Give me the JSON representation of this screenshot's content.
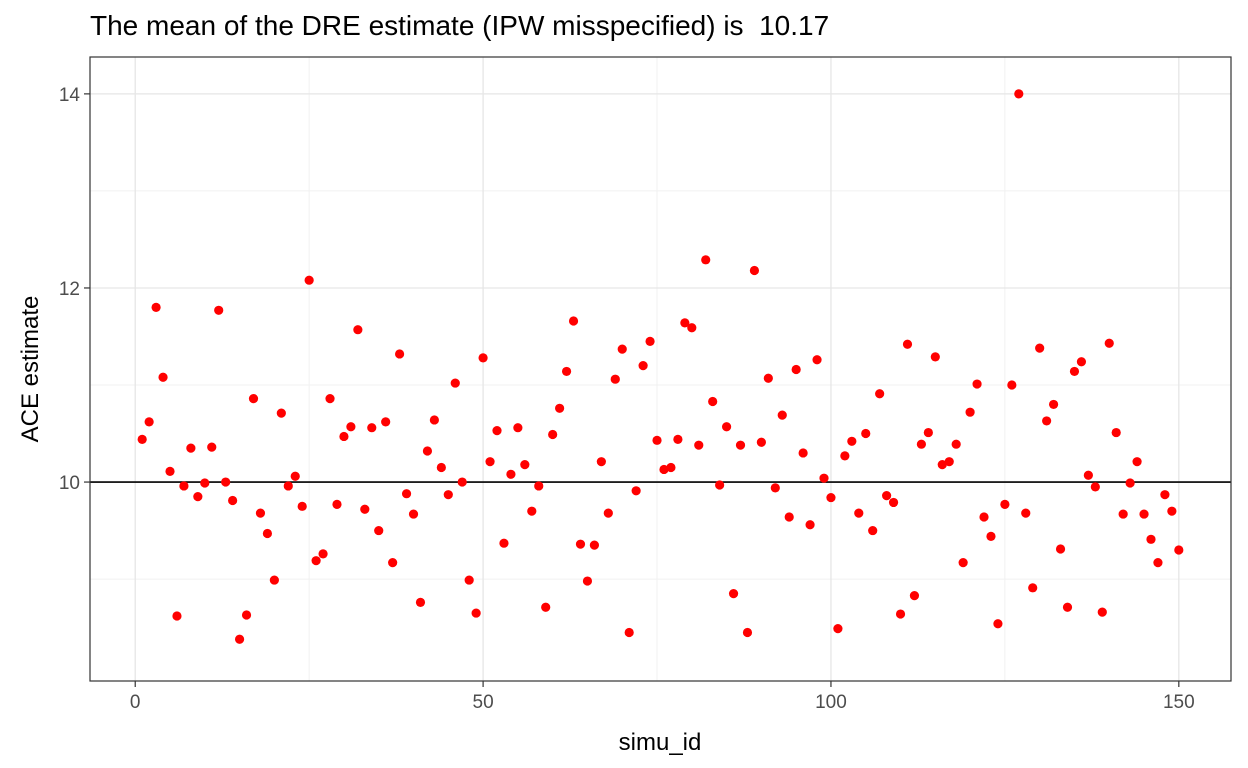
{
  "chart_data": {
    "type": "scatter",
    "title": "The mean of the DRE estimate (IPW misspecified) is  10.17",
    "xlabel": "simu_id",
    "ylabel": "ACE estimate",
    "xlim": [
      -6.5,
      157.5
    ],
    "ylim": [
      7.95,
      14.38
    ],
    "xticks": [
      0,
      50,
      100,
      150
    ],
    "yticks": [
      10,
      12,
      14
    ],
    "xminor": [
      25,
      75,
      125
    ],
    "yminor": [
      9,
      11,
      13
    ],
    "grid": true,
    "reference_line": 10,
    "point_color": "#ff0000",
    "line_color": "#000000",
    "series": [
      {
        "x": [
          1,
          2,
          3,
          4,
          5,
          6,
          7,
          8,
          9,
          10,
          11,
          12,
          13,
          14,
          15,
          16,
          17,
          18,
          19,
          20,
          21,
          22,
          23,
          24,
          25,
          26,
          27,
          28,
          29,
          30,
          31,
          32,
          33,
          34,
          35,
          36,
          37,
          38,
          39,
          40,
          41,
          42,
          43,
          44,
          45,
          46,
          47,
          48,
          49,
          50,
          51,
          52,
          53,
          54,
          55,
          56,
          57,
          58,
          59,
          60,
          61,
          62,
          63,
          64,
          65,
          66,
          67,
          68,
          69,
          70,
          71,
          72,
          73,
          74,
          75,
          76,
          77,
          78,
          79,
          80,
          81,
          82,
          83,
          84,
          85,
          86,
          87,
          88,
          89,
          90,
          91,
          92,
          93,
          94,
          95,
          96,
          97,
          98,
          99,
          100,
          101,
          102,
          103,
          104,
          105,
          106,
          107,
          108,
          109,
          110,
          111,
          112,
          113,
          114,
          115,
          116,
          117,
          118,
          119,
          120,
          121,
          122,
          123,
          124,
          125,
          126,
          127,
          128,
          129,
          130,
          131,
          132,
          133,
          134,
          135,
          136,
          137,
          138,
          139,
          140,
          141,
          142,
          143,
          144,
          145,
          146,
          147,
          148,
          149,
          150
        ],
        "y": [
          10.44,
          10.62,
          11.8,
          11.08,
          10.11,
          8.62,
          9.96,
          10.35,
          9.85,
          9.99,
          10.36,
          11.77,
          10.0,
          9.81,
          8.38,
          8.63,
          10.86,
          9.68,
          9.47,
          8.99,
          10.71,
          9.96,
          10.06,
          9.75,
          12.08,
          9.19,
          9.26,
          10.86,
          9.77,
          10.47,
          10.57,
          11.57,
          9.72,
          10.56,
          9.5,
          10.62,
          9.17,
          11.32,
          9.88,
          9.67,
          8.76,
          10.32,
          10.64,
          10.15,
          9.87,
          11.02,
          10.0,
          8.99,
          8.65,
          11.28,
          10.21,
          10.53,
          9.37,
          10.08,
          10.56,
          10.18,
          9.7,
          9.96,
          8.71,
          10.49,
          10.76,
          11.14,
          11.66,
          9.36,
          8.98,
          9.35,
          10.21,
          9.68,
          11.06,
          11.37,
          8.45,
          9.91,
          11.2,
          11.45,
          10.43,
          10.13,
          10.15,
          10.44,
          11.64,
          11.59,
          10.38,
          12.29,
          10.83,
          9.97,
          10.57,
          8.85,
          10.38,
          8.45,
          12.18,
          10.41,
          11.07,
          9.94,
          10.69,
          9.64,
          11.16,
          10.3,
          9.56,
          11.26,
          10.04,
          9.84,
          8.49,
          10.27,
          10.42,
          9.68,
          10.5,
          9.5,
          10.91,
          9.86,
          9.79,
          8.64,
          11.42,
          8.83,
          10.39,
          10.51,
          11.29,
          10.18,
          10.21,
          10.39,
          9.17,
          10.72,
          11.01,
          9.64,
          9.44,
          8.54,
          9.77,
          11.0,
          14.0,
          9.68,
          8.91,
          11.38,
          10.63,
          10.8,
          9.31,
          8.71,
          11.14,
          11.24,
          10.07,
          9.95,
          8.66,
          11.43,
          10.51,
          9.67,
          9.99,
          10.21,
          9.67,
          9.41,
          9.17,
          9.87,
          9.7,
          9.3
        ]
      }
    ]
  }
}
